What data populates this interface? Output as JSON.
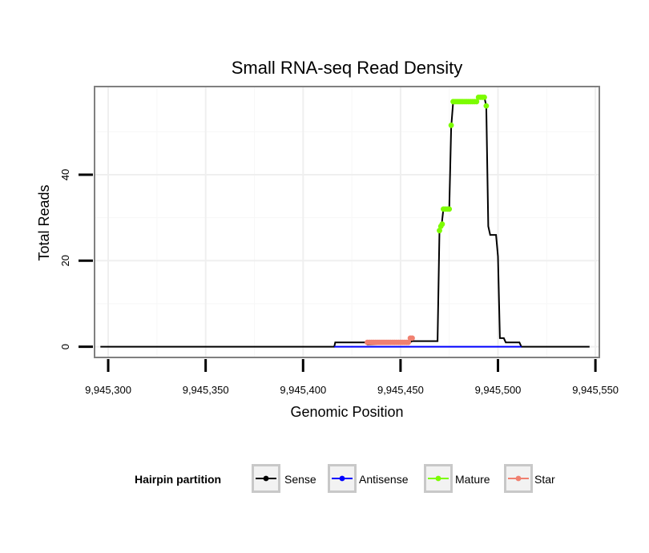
{
  "chart_data": {
    "type": "line",
    "title": "Small RNA-seq Read Density",
    "xlabel": "Genomic Position",
    "ylabel": "Total Reads",
    "xlim": [
      9945293,
      9945552
    ],
    "ylim": [
      -2.5,
      60.5
    ],
    "x_ticks": [
      9945300,
      9945350,
      9945400,
      9945450,
      9945500,
      9945550
    ],
    "x_tick_labels": [
      "9,945,300",
      "9,945,350",
      "9,945,400",
      "9,945,450",
      "9,945,500",
      "9,945,550"
    ],
    "y_ticks": [
      0,
      20,
      40
    ],
    "y_tick_labels": [
      "0",
      "20",
      "40"
    ],
    "grid": true,
    "legend": {
      "title": "Hairpin partition",
      "position": "bottom",
      "entries": [
        "Sense",
        "Antisense",
        "Mature",
        "Star"
      ]
    },
    "series": [
      {
        "name": "Sense",
        "color": "#000000",
        "marker": "none",
        "points": [
          [
            9945296,
            0
          ],
          [
            9945416,
            0
          ],
          [
            9945416.5,
            1
          ],
          [
            9945432,
            1
          ],
          [
            9945433,
            0.5
          ],
          [
            9945454,
            0.8
          ],
          [
            9945456,
            1.3
          ],
          [
            9945469,
            1.3
          ],
          [
            9945470,
            27
          ],
          [
            9945471,
            28
          ],
          [
            9945472,
            32
          ],
          [
            9945475,
            32
          ],
          [
            9945476,
            51
          ],
          [
            9945477,
            57
          ],
          [
            9945480,
            57
          ],
          [
            9945485,
            57
          ],
          [
            9945489,
            57
          ],
          [
            9945490,
            58
          ],
          [
            9945493,
            58
          ],
          [
            9945494,
            56
          ],
          [
            9945495,
            28
          ],
          [
            9945496,
            26
          ],
          [
            9945499,
            26
          ],
          [
            9945500,
            21
          ],
          [
            9945501,
            2
          ],
          [
            9945503,
            2
          ],
          [
            9945504,
            1
          ],
          [
            9945511,
            1
          ],
          [
            9945512,
            0
          ],
          [
            9945547,
            0
          ]
        ]
      },
      {
        "name": "Antisense",
        "color": "#0000ff",
        "marker": "none",
        "points": [
          [
            9945416,
            0
          ],
          [
            9945512,
            0
          ]
        ]
      },
      {
        "name": "Mature",
        "color": "#7cfc00",
        "marker": "circle",
        "points": [
          [
            9945470,
            27
          ],
          [
            9945470.7,
            28
          ],
          [
            9945471.4,
            28.5
          ],
          [
            9945472,
            32
          ],
          [
            9945473,
            32
          ],
          [
            9945474,
            32
          ],
          [
            9945475,
            32
          ],
          [
            9945476,
            51.5
          ],
          [
            9945477,
            57
          ],
          [
            9945478,
            57
          ],
          [
            9945479,
            57
          ],
          [
            9945480,
            57
          ],
          [
            9945481,
            57
          ],
          [
            9945482,
            57
          ],
          [
            9945483,
            57
          ],
          [
            9945484,
            57
          ],
          [
            9945485,
            57
          ],
          [
            9945486,
            57
          ],
          [
            9945487,
            57
          ],
          [
            9945488,
            57
          ],
          [
            9945489,
            57
          ],
          [
            9945490,
            58
          ],
          [
            9945491,
            58
          ],
          [
            9945492,
            58
          ],
          [
            9945493,
            58
          ],
          [
            9945494,
            56
          ]
        ]
      },
      {
        "name": "Star",
        "color": "#f08070",
        "marker": "circle",
        "points": [
          [
            9945433,
            1
          ],
          [
            9945434,
            1
          ],
          [
            9945435,
            1
          ],
          [
            9945436,
            1
          ],
          [
            9945437,
            1
          ],
          [
            9945438,
            1
          ],
          [
            9945439,
            1
          ],
          [
            9945440,
            1
          ],
          [
            9945441,
            1
          ],
          [
            9945442,
            1
          ],
          [
            9945443,
            1
          ],
          [
            9945444,
            1
          ],
          [
            9945445,
            1
          ],
          [
            9945446,
            1
          ],
          [
            9945447,
            1
          ],
          [
            9945448,
            1
          ],
          [
            9945449,
            1
          ],
          [
            9945450,
            1
          ],
          [
            9945451,
            1
          ],
          [
            9945452,
            1
          ],
          [
            9945453,
            1
          ],
          [
            9945454,
            1
          ],
          [
            9945455,
            2
          ],
          [
            9945456,
            2
          ]
        ]
      }
    ]
  }
}
